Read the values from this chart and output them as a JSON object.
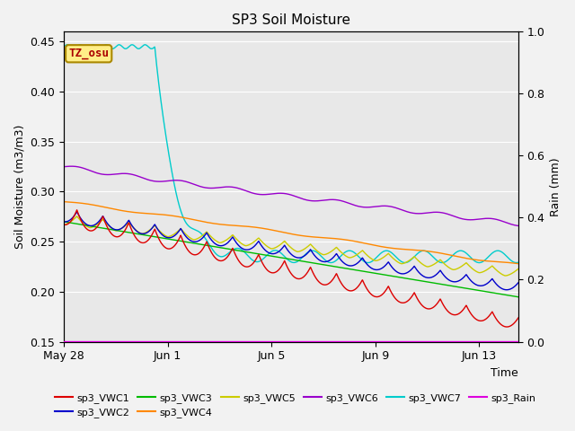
{
  "title": "SP3 Soil Moisture",
  "xlabel": "Time",
  "ylabel_left": "Soil Moisture (m3/m3)",
  "ylabel_right": "Rain (mm)",
  "xlim_days": [
    0,
    17.5
  ],
  "ylim_left": [
    0.15,
    0.46
  ],
  "ylim_right": [
    0.0,
    1.0
  ],
  "x_ticks_labels": [
    "May 28",
    "Jun 1",
    "Jun 5",
    "Jun 9",
    "Jun 13"
  ],
  "x_ticks_pos": [
    0,
    4,
    8,
    12,
    16
  ],
  "y_ticks_left": [
    0.15,
    0.2,
    0.25,
    0.3,
    0.35,
    0.4,
    0.45
  ],
  "y_ticks_right": [
    0.0,
    0.2,
    0.4,
    0.6,
    0.8,
    1.0
  ],
  "plot_bg_color": "#e8e8e8",
  "fig_bg_color": "#f2f2f2",
  "grid_color": "#ffffff",
  "annotation_text": "TZ_osu",
  "annotation_text_color": "#aa0000",
  "annotation_bg": "#ffee88",
  "annotation_edge": "#aa8800",
  "series_colors": {
    "sp3_VWC1": "#dd0000",
    "sp3_VWC2": "#0000cc",
    "sp3_VWC3": "#00bb00",
    "sp3_VWC4": "#ff8800",
    "sp3_VWC5": "#cccc00",
    "sp3_VWC6": "#9900cc",
    "sp3_VWC7": "#00cccc",
    "sp3_Rain": "#dd00dd"
  }
}
